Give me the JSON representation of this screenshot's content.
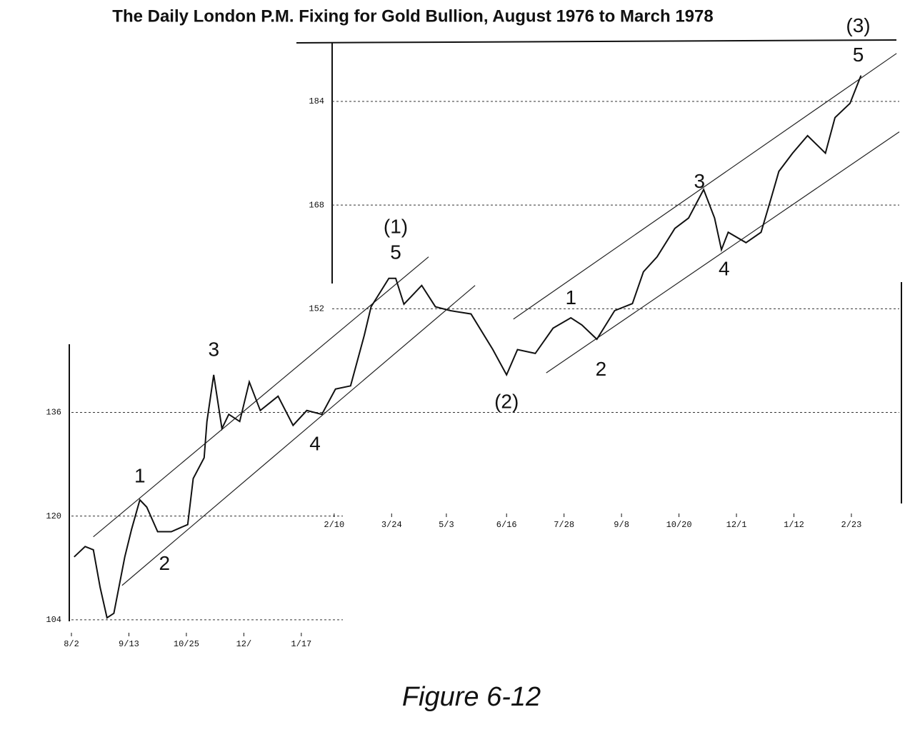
{
  "chart_data": {
    "type": "line",
    "title": "The Daily London P.M. Fixing for Gold Bullion, August 1976 to March 1978",
    "caption": "Figure 6-12",
    "color": "#111111",
    "xlim": [
      0,
      605
    ],
    "ylim": [
      102,
      197
    ],
    "yticks": [
      104,
      120,
      136,
      152,
      168,
      184
    ],
    "xticks": [
      {
        "value": 0,
        "label": "8/2"
      },
      {
        "value": 42,
        "label": "9/13"
      },
      {
        "value": 84,
        "label": "10/25"
      },
      {
        "value": 126,
        "label": "12/"
      },
      {
        "value": 168,
        "label": "1/17"
      },
      {
        "value": 192,
        "label": "2/10"
      },
      {
        "value": 234,
        "label": "3/24"
      },
      {
        "value": 274,
        "label": "5/3"
      },
      {
        "value": 318,
        "label": "6/16"
      },
      {
        "value": 360,
        "label": "7/28"
      },
      {
        "value": 402,
        "label": "9/8"
      },
      {
        "value": 444,
        "label": "10/20"
      },
      {
        "value": 486,
        "label": "12/1"
      },
      {
        "value": 528,
        "label": "1/12"
      },
      {
        "value": 570,
        "label": "2/23"
      }
    ],
    "grid": true,
    "x": [
      2,
      10,
      16,
      21,
      26,
      31,
      39,
      44,
      50,
      55,
      63,
      73,
      85,
      89,
      97,
      99,
      104,
      110,
      115,
      123,
      130,
      138,
      151,
      162,
      172,
      183,
      193,
      204,
      214,
      219,
      232,
      237,
      243,
      256,
      266,
      277,
      292,
      308,
      318,
      326,
      339,
      352,
      365,
      373,
      384,
      397,
      410,
      418,
      428,
      441,
      451,
      462,
      470,
      475,
      480,
      493,
      504,
      511,
      517,
      527,
      538,
      551,
      558,
      569,
      577
    ],
    "values": [
      113.7,
      115.3,
      114.8,
      109,
      104.3,
      105,
      113.7,
      118,
      122.5,
      121.4,
      117.6,
      117.6,
      118.7,
      125.8,
      129,
      134.6,
      141.8,
      133.5,
      135.7,
      134.6,
      140.7,
      136.3,
      138.5,
      134,
      136.3,
      135.7,
      139.6,
      140.1,
      147.9,
      152.3,
      156.7,
      156.7,
      152.7,
      155.6,
      152.3,
      151.7,
      151.2,
      145.7,
      141.8,
      145.7,
      145.1,
      149,
      150.6,
      149.5,
      147.3,
      151.7,
      152.8,
      157.7,
      160,
      164.4,
      166,
      170.4,
      166,
      161.1,
      163.8,
      162.2,
      163.8,
      168.8,
      173.2,
      176,
      178.7,
      176,
      181.5,
      183.7,
      188
    ],
    "annotations": [
      {
        "text": "1",
        "x": 50,
        "y": 126
      },
      {
        "text": "2",
        "x": 68,
        "y": 112.5
      },
      {
        "text": "3",
        "x": 104,
        "y": 145.5
      },
      {
        "text": "4",
        "x": 178,
        "y": 131
      },
      {
        "text": "5",
        "x": 237,
        "y": 160.5
      },
      {
        "text": "(1)",
        "x": 237,
        "y": 164.5
      },
      {
        "text": "(2)",
        "x": 318,
        "y": 137.5
      },
      {
        "text": "1",
        "x": 365,
        "y": 153.5
      },
      {
        "text": "2",
        "x": 387,
        "y": 142.5
      },
      {
        "text": "3",
        "x": 459,
        "y": 171.5
      },
      {
        "text": "4",
        "x": 477,
        "y": 158
      },
      {
        "text": "5",
        "x": 575,
        "y": 191
      },
      {
        "text": "(3)",
        "x": 575,
        "y": 195.5
      }
    ],
    "trendlines": [
      [
        [
          16,
          116.8
        ],
        [
          261,
          160
        ]
      ],
      [
        [
          37,
          109.3
        ],
        [
          295,
          155.6
        ]
      ],
      [
        [
          323,
          150.4
        ],
        [
          603,
          191.4
        ]
      ],
      [
        [
          347,
          142.1
        ],
        [
          605,
          179.3
        ]
      ]
    ]
  }
}
